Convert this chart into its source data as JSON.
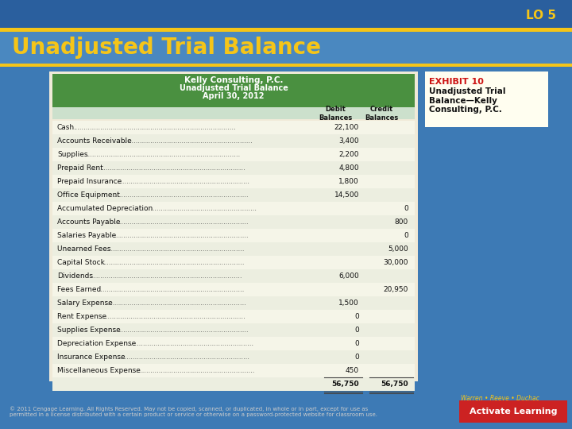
{
  "bg_color": "#3d7ab5",
  "title_text": "Unadjusted Trial Balance",
  "title_color": "#f5c518",
  "lo_text": "LO 5",
  "lo_color": "#f5c518",
  "gold_line_color": "#f5c518",
  "table_outer_bg": "#f0ead8",
  "table_bg": "#f5f5e8",
  "table_header_bg": "#4a9040",
  "table_header_color": "#ffffff",
  "col_header_bg": "#cce0cc",
  "exhibit_box_bg": "#fffef0",
  "exhibit_title_color": "#cc1111",
  "exhibit_title": "EXHIBIT 10",
  "exhibit_text": "Unadjusted Trial\nBalance—Kelly\nConsulting, P.C.",
  "company_name": "Kelly Consulting, P.C.",
  "report_name": "Unadjusted Trial Balance",
  "report_date": "April 30, 2012",
  "col_debit": "Debit\nBalances",
  "col_credit": "Credit\nBalances",
  "rows": [
    [
      "Cash",
      "22,100",
      ""
    ],
    [
      "Accounts Receivable",
      "3,400",
      ""
    ],
    [
      "Supplies",
      "2,200",
      ""
    ],
    [
      "Prepaid Rent",
      "4,800",
      ""
    ],
    [
      "Prepaid Insurance",
      "1,800",
      ""
    ],
    [
      "Office Equipment",
      "14,500",
      ""
    ],
    [
      "Accumulated Depreciation",
      "",
      "0"
    ],
    [
      "Accounts Payable",
      "",
      "800"
    ],
    [
      "Salaries Payable",
      "",
      "0"
    ],
    [
      "Unearned Fees",
      "",
      "5,000"
    ],
    [
      "Capital Stock",
      "",
      "30,000"
    ],
    [
      "Dividends",
      "6,000",
      ""
    ],
    [
      "Fees Earned",
      "",
      "20,950"
    ],
    [
      "Salary Expense",
      "1,500",
      ""
    ],
    [
      "Rent Expense",
      "0",
      ""
    ],
    [
      "Supplies Expense",
      "0",
      ""
    ],
    [
      "Depreciation Expense",
      "0",
      ""
    ],
    [
      "Insurance Expense",
      "0",
      ""
    ],
    [
      "Miscellaneous Expense",
      "450",
      ""
    ]
  ],
  "total_debit": "56,750",
  "total_credit": "56,750",
  "footer_text": "© 2011 Cengage Learning. All Rights Reserved. May not be copied, scanned, or duplicated, in whole or in part, except for use as\npermitted in a license distributed with a certain product or service or otherwise on a password-protected website for classroom use.",
  "activate_bg": "#cc2222",
  "activate_text": "Activate Learning",
  "author_text": "Warren • Reeve • Duchac"
}
